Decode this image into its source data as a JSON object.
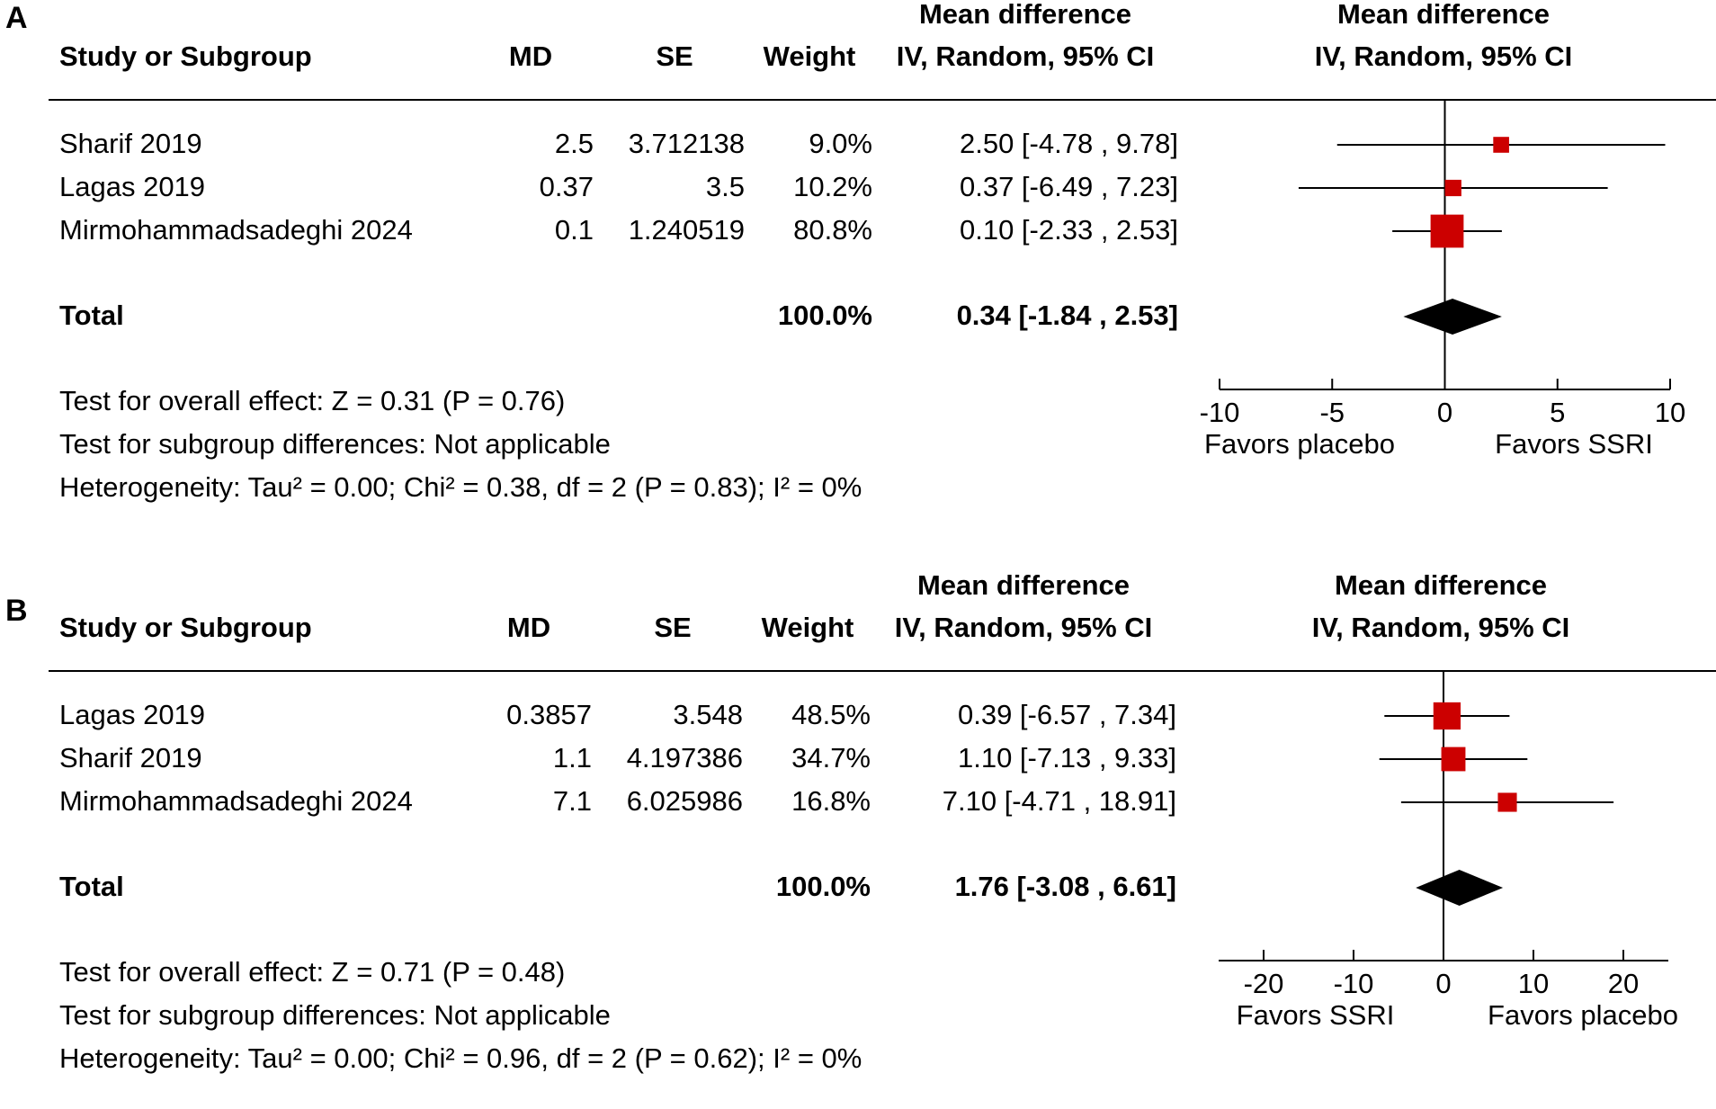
{
  "chart_data": [
    {
      "type": "forest",
      "panel_label": "A",
      "columns": {
        "study": "Study or Subgroup",
        "md": "MD",
        "se": "SE",
        "weight": "Weight",
        "effect_title": "Mean difference",
        "effect_sub": "IV, Random, 95% CI"
      },
      "plot_title": "Mean difference",
      "plot_sub": "IV, Random, 95% CI",
      "studies": [
        {
          "name": "Sharif 2019",
          "md": "2.5",
          "se": "3.712138",
          "weight": "9.0%",
          "ci_text": "2.50 [-4.78 , 9.78]",
          "est": 2.5,
          "lo": -4.78,
          "hi": 9.78,
          "w": 9.0
        },
        {
          "name": "Lagas 2019",
          "md": "0.37",
          "se": "3.5",
          "weight": "10.2%",
          "ci_text": "0.37 [-6.49 , 7.23]",
          "est": 0.37,
          "lo": -6.49,
          "hi": 7.23,
          "w": 10.2
        },
        {
          "name": "Mirmohammadsadeghi 2024",
          "md": "0.1",
          "se": "1.240519",
          "weight": "80.8%",
          "ci_text": "0.10 [-2.33 , 2.53]",
          "est": 0.1,
          "lo": -2.33,
          "hi": 2.53,
          "w": 80.8
        }
      ],
      "total": {
        "label": "Total",
        "weight": "100.0%",
        "ci_text": "0.34 [-1.84 , 2.53]",
        "est": 0.34,
        "lo": -1.84,
        "hi": 2.53
      },
      "footer": [
        "Test for overall effect: Z = 0.31 (P = 0.76)",
        "Test for subgroup differences: Not applicable",
        "Heterogeneity: Tau² = 0.00; Chi² = 0.38, df = 2 (P = 0.83); I² = 0%"
      ],
      "axis": {
        "xlim": [
          -10,
          10
        ],
        "ticks": [
          -10,
          -5,
          0,
          5,
          10
        ],
        "tick_labels": [
          "-10",
          "-5",
          "0",
          "5",
          "10"
        ]
      },
      "favors_left": "Favors placebo",
      "favors_right": "Favors SSRI",
      "colors": {
        "marker": "#cc0000",
        "diamond": "#000000"
      }
    },
    {
      "type": "forest",
      "panel_label": "B",
      "columns": {
        "study": "Study or Subgroup",
        "md": "MD",
        "se": "SE",
        "weight": "Weight",
        "effect_title": "Mean difference",
        "effect_sub": "IV, Random, 95% CI"
      },
      "plot_title": "Mean difference",
      "plot_sub": "IV, Random, 95% CI",
      "studies": [
        {
          "name": "Lagas 2019",
          "md": "0.3857",
          "se": "3.548",
          "weight": "48.5%",
          "ci_text": "0.39 [-6.57 , 7.34]",
          "est": 0.39,
          "lo": -6.57,
          "hi": 7.34,
          "w": 48.5
        },
        {
          "name": "Sharif 2019",
          "md": "1.1",
          "se": "4.197386",
          "weight": "34.7%",
          "ci_text": "1.10 [-7.13 , 9.33]",
          "est": 1.1,
          "lo": -7.13,
          "hi": 9.33,
          "w": 34.7
        },
        {
          "name": "Mirmohammadsadeghi 2024",
          "md": "7.1",
          "se": "6.025986",
          "weight": "16.8%",
          "ci_text": "7.10 [-4.71 , 18.91]",
          "est": 7.1,
          "lo": -4.71,
          "hi": 18.91,
          "w": 16.8
        }
      ],
      "total": {
        "label": "Total",
        "weight": "100.0%",
        "ci_text": "1.76 [-3.08 , 6.61]",
        "est": 1.76,
        "lo": -3.08,
        "hi": 6.61
      },
      "footer": [
        "Test for overall effect: Z = 0.71 (P = 0.48)",
        "Test for subgroup differences: Not applicable",
        "Heterogeneity: Tau² = 0.00; Chi² = 0.96, df = 2 (P = 0.62); I² = 0%"
      ],
      "axis": {
        "xlim": [
          -25,
          25
        ],
        "ticks": [
          -20,
          -10,
          0,
          10,
          20
        ],
        "tick_labels": [
          "-20",
          "-10",
          "0",
          "10",
          "20"
        ]
      },
      "favors_left": "Favors SSRI",
      "favors_right": "Favors placebo",
      "colors": {
        "marker": "#cc0000",
        "diamond": "#000000"
      }
    }
  ]
}
